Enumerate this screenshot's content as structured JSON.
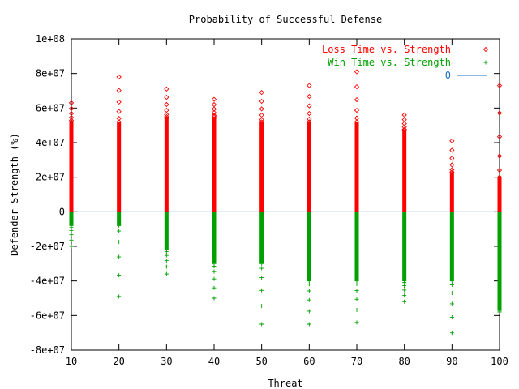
{
  "chart_data": {
    "type": "scatter",
    "title": "Probability of Successful Defense",
    "xlabel": "Threat",
    "ylabel": "Defender Strength (%)",
    "xlim": [
      10,
      100
    ],
    "ylim": [
      -80000000,
      100000000
    ],
    "x_ticks": [
      10,
      20,
      30,
      40,
      50,
      60,
      70,
      80,
      90,
      100
    ],
    "y_ticks": [
      {
        "value": 100000000,
        "label": "1e+08"
      },
      {
        "value": 80000000,
        "label": "8e+07"
      },
      {
        "value": 60000000,
        "label": "6e+07"
      },
      {
        "value": 40000000,
        "label": "4e+07"
      },
      {
        "value": 20000000,
        "label": "2e+07"
      },
      {
        "value": 0,
        "label": "0"
      },
      {
        "value": -20000000,
        "label": "-2e+07"
      },
      {
        "value": -40000000,
        "label": "-4e+07"
      },
      {
        "value": -60000000,
        "label": "-6e+07"
      },
      {
        "value": -80000000,
        "label": "-8e+07"
      }
    ],
    "legend_position": "top-right",
    "series": [
      {
        "name": "Loss Time vs. Strength",
        "marker": "diamond",
        "color": "#ff0000",
        "x": [
          10,
          20,
          30,
          40,
          50,
          60,
          70,
          80,
          90,
          100
        ],
        "dense_max": [
          52000000,
          52000000,
          55000000,
          55000000,
          52000000,
          52000000,
          52000000,
          47000000,
          23000000,
          20000000
        ],
        "outliers": [
          63000000,
          78000000,
          71000000,
          65000000,
          69000000,
          73000000,
          81000000,
          56000000,
          41000000,
          73000000
        ]
      },
      {
        "name": "Win Time vs. Strength",
        "marker": "plus",
        "color": "#00a000",
        "x": [
          10,
          20,
          30,
          40,
          50,
          60,
          70,
          80,
          90,
          100
        ],
        "dense_min": [
          -8000000,
          -8000000,
          -22000000,
          -30000000,
          -30000000,
          -40000000,
          -40000000,
          -40000000,
          -40000000,
          -56000000
        ],
        "outliers": [
          -20000000,
          -49000000,
          -36000000,
          -50000000,
          -65000000,
          -65000000,
          -64000000,
          -52000000,
          -70000000,
          -58000000
        ]
      },
      {
        "name": "0",
        "marker": "line",
        "color": "#1f6fbf",
        "y": 0
      }
    ]
  }
}
